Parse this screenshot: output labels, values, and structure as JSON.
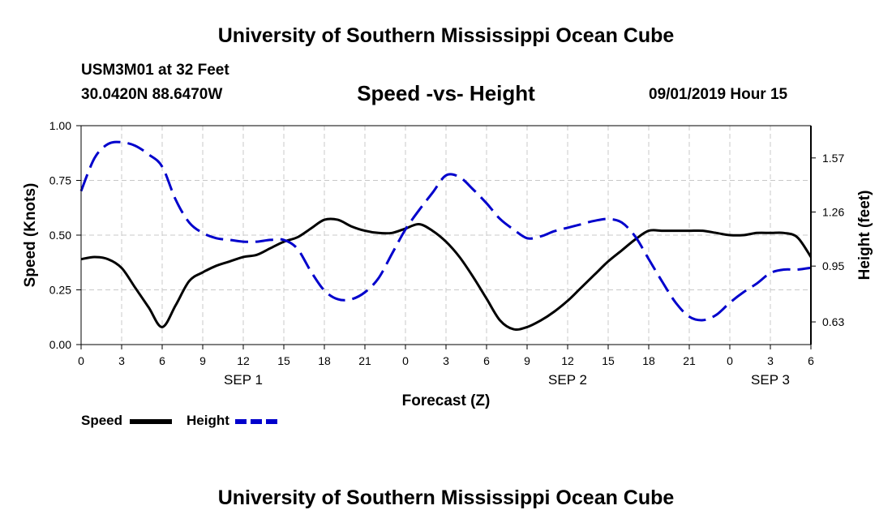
{
  "header": {
    "title": "University of Southern Mississippi Ocean Cube",
    "station": "USM3M01 at 32 Feet",
    "coords": "30.0420N 88.6470W",
    "subtitle": "Speed -vs- Height",
    "datetime": "09/01/2019 Hour 15"
  },
  "footer": {
    "title": "University of Southern Mississippi Ocean Cube"
  },
  "chart_data": {
    "type": "line",
    "xlabel": "Forecast (Z)",
    "ylabel": "Speed (Knots)",
    "y2label": "Height (feet)",
    "x_ticks": [
      "0",
      "3",
      "6",
      "9",
      "12",
      "15",
      "18",
      "21",
      "0",
      "3",
      "6",
      "9",
      "12",
      "15",
      "18",
      "21",
      "0",
      "3",
      "6"
    ],
    "x_range_hours": [
      0,
      54
    ],
    "day_labels": [
      {
        "label": "SEP 1",
        "hour": 12
      },
      {
        "label": "SEP 2",
        "hour": 36
      },
      {
        "label": "SEP 3",
        "hour": 51
      }
    ],
    "y_ticks": [
      "0.00",
      "0.25",
      "0.50",
      "0.75",
      "1.00"
    ],
    "ylim": [
      0,
      1
    ],
    "y2_ticks": [
      "0.63",
      "0.95",
      "1.26",
      "1.57"
    ],
    "y2lim": [
      0.5,
      1.755
    ],
    "grid": true,
    "legend_position": "bottom-left",
    "series": [
      {
        "name": "Speed",
        "color": "#000000",
        "style": "solid",
        "axis": "left",
        "x": [
          0,
          1,
          2,
          3,
          4,
          5,
          6,
          7,
          8,
          9,
          10,
          11,
          12,
          13,
          14,
          15,
          16,
          17,
          18,
          19,
          20,
          21,
          22,
          23,
          24,
          25,
          26,
          27,
          28,
          29,
          30,
          31,
          32,
          33,
          34,
          35,
          36,
          37,
          38,
          39,
          40,
          41,
          42,
          43,
          44,
          45,
          46,
          47,
          48,
          49,
          50,
          51,
          52,
          53,
          54
        ],
        "values": [
          0.39,
          0.4,
          0.39,
          0.35,
          0.26,
          0.17,
          0.08,
          0.18,
          0.29,
          0.33,
          0.36,
          0.38,
          0.4,
          0.41,
          0.44,
          0.47,
          0.49,
          0.53,
          0.57,
          0.57,
          0.54,
          0.52,
          0.51,
          0.51,
          0.53,
          0.55,
          0.52,
          0.47,
          0.4,
          0.31,
          0.21,
          0.11,
          0.07,
          0.08,
          0.11,
          0.15,
          0.2,
          0.26,
          0.32,
          0.38,
          0.43,
          0.48,
          0.52,
          0.52,
          0.52,
          0.52,
          0.52,
          0.51,
          0.5,
          0.5,
          0.51,
          0.51,
          0.51,
          0.49,
          0.4
        ]
      },
      {
        "name": "Height",
        "color": "#0000cc",
        "style": "dashed",
        "axis": "right",
        "x": [
          0,
          1,
          2,
          3,
          4,
          5,
          6,
          7,
          8,
          9,
          10,
          11,
          12,
          13,
          14,
          15,
          16,
          17,
          18,
          19,
          20,
          21,
          22,
          23,
          24,
          25,
          26,
          27,
          28,
          29,
          30,
          31,
          32,
          33,
          34,
          35,
          36,
          37,
          38,
          39,
          40,
          41,
          42,
          43,
          44,
          45,
          46,
          47,
          48,
          49,
          50,
          51,
          52,
          53,
          54
        ],
        "values": [
          1.38,
          1.57,
          1.65,
          1.66,
          1.64,
          1.59,
          1.52,
          1.33,
          1.2,
          1.14,
          1.11,
          1.1,
          1.09,
          1.09,
          1.1,
          1.1,
          1.05,
          0.92,
          0.81,
          0.76,
          0.76,
          0.8,
          0.88,
          1.02,
          1.16,
          1.27,
          1.37,
          1.47,
          1.46,
          1.39,
          1.31,
          1.22,
          1.16,
          1.11,
          1.12,
          1.15,
          1.17,
          1.19,
          1.21,
          1.22,
          1.2,
          1.12,
          0.99,
          0.86,
          0.74,
          0.66,
          0.64,
          0.67,
          0.74,
          0.8,
          0.85,
          0.91,
          0.93,
          0.93,
          0.94
        ]
      }
    ]
  }
}
